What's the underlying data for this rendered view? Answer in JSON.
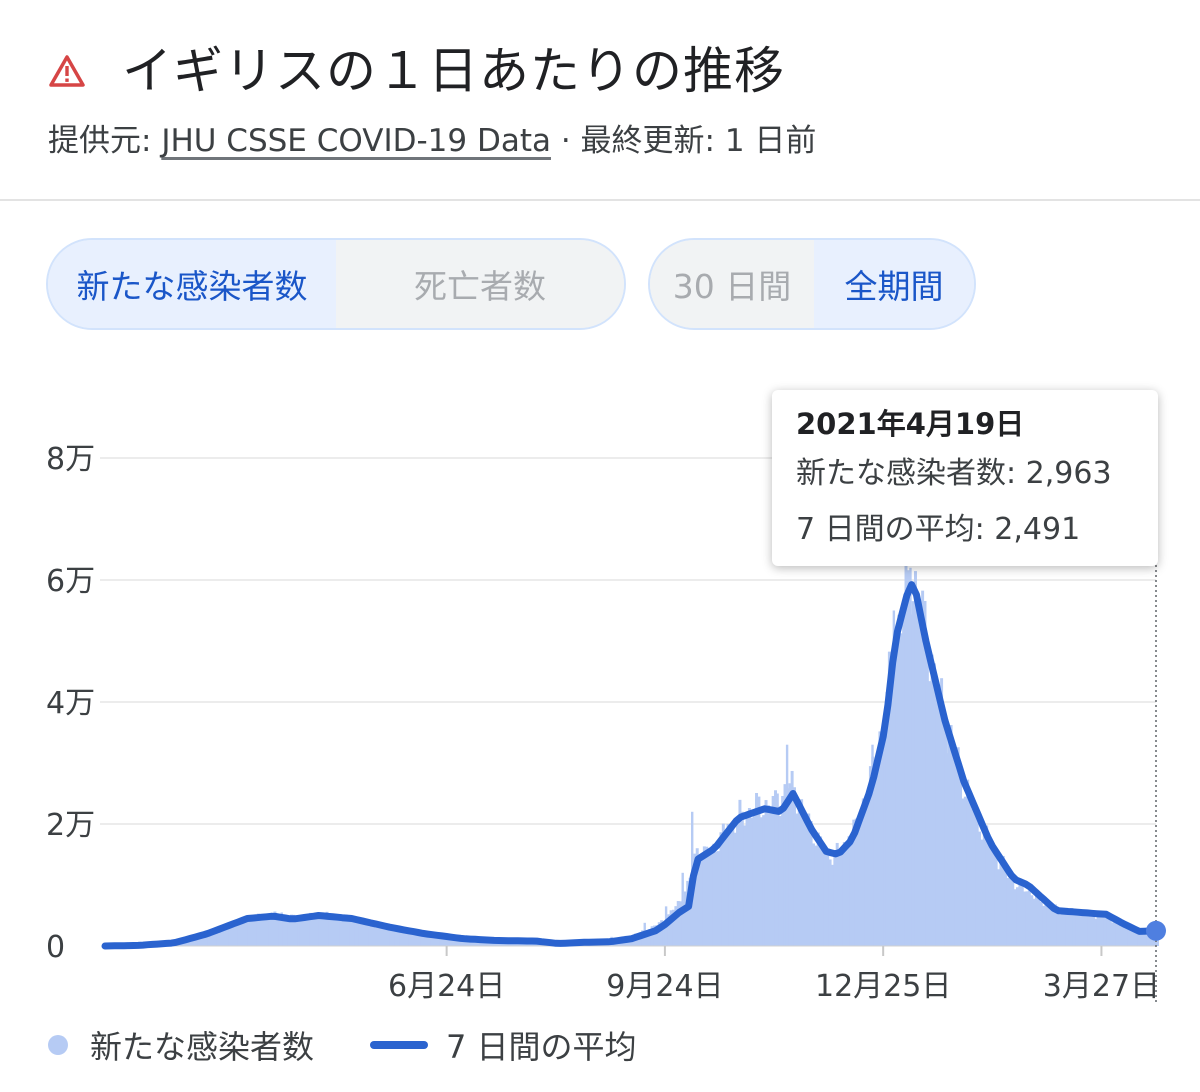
{
  "header": {
    "title": "イギリスの１日あたりの推移",
    "source_prefix": "提供元: ",
    "source_link": "JHU CSSE COVID-19 Data",
    "updated": " · 最終更新: 1 日前",
    "icon": "warning-triangle-icon"
  },
  "toggles": {
    "metric": {
      "options": [
        "新たな感染者数",
        "死亡者数"
      ],
      "selected": "新たな感染者数"
    },
    "range": {
      "options": [
        "30 日間",
        "全期間"
      ],
      "selected": "全期間"
    }
  },
  "tooltip": {
    "date": "2021年4月19日",
    "cases_label": "新たな感染者数: 2,963",
    "avg_label": "7 日間の平均: 2,491"
  },
  "legend": {
    "bars": "新たな感染者数",
    "line": "7 日間の平均"
  },
  "colors": {
    "bar": "#b6cbf4",
    "line": "#2a63cf",
    "active_text": "#1a56c8",
    "grid": "#ececec"
  },
  "chart_data": {
    "type": "bar",
    "title": "イギリスの１日あたりの推移",
    "xlabel": "",
    "ylabel": "",
    "x_range": [
      "2020-02-01",
      "2021-04-19"
    ],
    "ylim": [
      0,
      80000
    ],
    "y_ticks": [
      0,
      20000,
      40000,
      60000,
      80000
    ],
    "y_tick_labels": [
      "0",
      "2万",
      "4万",
      "6万",
      "8万"
    ],
    "x_ticks": [
      "2020-06-24",
      "2020-09-24",
      "2020-12-25",
      "2021-03-27"
    ],
    "x_tick_labels": [
      "6月24日",
      "9月24日",
      "12月25日",
      "3月27日"
    ],
    "grid": true,
    "legend_position": "bottom-left",
    "series": [
      {
        "name": "新たな感染者数",
        "type": "bar",
        "points": [
          [
            "2020-02-01",
            0
          ],
          [
            "2020-03-01",
            200
          ],
          [
            "2020-03-15",
            1500
          ],
          [
            "2020-04-05",
            5000
          ],
          [
            "2020-04-15",
            5500
          ],
          [
            "2020-04-25",
            4800
          ],
          [
            "2020-05-05",
            5400
          ],
          [
            "2020-05-15",
            5000
          ],
          [
            "2020-06-01",
            3200
          ],
          [
            "2020-06-20",
            1800
          ],
          [
            "2020-07-10",
            800
          ],
          [
            "2020-08-01",
            700
          ],
          [
            "2020-08-15",
            1000
          ],
          [
            "2020-09-01",
            1500
          ],
          [
            "2020-09-15",
            3800
          ],
          [
            "2020-09-24",
            6500
          ],
          [
            "2020-10-01",
            12000
          ],
          [
            "2020-10-05",
            22000
          ],
          [
            "2020-10-10",
            15000
          ],
          [
            "2020-10-20",
            20000
          ],
          [
            "2020-11-01",
            24000
          ],
          [
            "2020-11-10",
            25000
          ],
          [
            "2020-11-14",
            33000
          ],
          [
            "2020-11-20",
            22000
          ],
          [
            "2020-12-01",
            14000
          ],
          [
            "2020-12-10",
            18000
          ],
          [
            "2020-12-20",
            33000
          ],
          [
            "2020-12-29",
            55000
          ],
          [
            "2021-01-05",
            62000
          ],
          [
            "2021-01-12",
            50000
          ],
          [
            "2021-01-20",
            35000
          ],
          [
            "2021-02-01",
            20000
          ],
          [
            "2021-02-15",
            10000
          ],
          [
            "2021-03-01",
            6000
          ],
          [
            "2021-03-15",
            5500
          ],
          [
            "2021-03-27",
            4500
          ],
          [
            "2021-04-10",
            2500
          ],
          [
            "2021-04-19",
            2963
          ]
        ]
      },
      {
        "name": "7 日間の平均",
        "type": "line",
        "points": [
          [
            "2020-02-01",
            0
          ],
          [
            "2020-02-15",
            100
          ],
          [
            "2020-03-01",
            500
          ],
          [
            "2020-03-15",
            2000
          ],
          [
            "2020-04-01",
            4500
          ],
          [
            "2020-04-12",
            4900
          ],
          [
            "2020-04-20",
            4400
          ],
          [
            "2020-05-01",
            5000
          ],
          [
            "2020-05-15",
            4500
          ],
          [
            "2020-06-01",
            3000
          ],
          [
            "2020-06-15",
            2000
          ],
          [
            "2020-07-01",
            1200
          ],
          [
            "2020-07-15",
            900
          ],
          [
            "2020-08-01",
            800
          ],
          [
            "2020-08-10",
            400
          ],
          [
            "2020-08-20",
            600
          ],
          [
            "2020-09-01",
            700
          ],
          [
            "2020-09-10",
            1200
          ],
          [
            "2020-09-20",
            2500
          ],
          [
            "2020-09-24",
            3500
          ],
          [
            "2020-09-30",
            5500
          ],
          [
            "2020-10-04",
            6500
          ],
          [
            "2020-10-07",
            14000
          ],
          [
            "2020-10-15",
            16000
          ],
          [
            "2020-10-25",
            21000
          ],
          [
            "2020-11-05",
            22500
          ],
          [
            "2020-11-12",
            22000
          ],
          [
            "2020-11-17",
            25000
          ],
          [
            "2020-11-25",
            19000
          ],
          [
            "2020-12-01",
            15500
          ],
          [
            "2020-12-06",
            15000
          ],
          [
            "2020-12-12",
            17500
          ],
          [
            "2020-12-20",
            26000
          ],
          [
            "2020-12-26",
            36000
          ],
          [
            "2020-12-30",
            50000
          ],
          [
            "2021-01-05",
            59000
          ],
          [
            "2021-01-07",
            59500
          ],
          [
            "2021-01-12",
            50000
          ],
          [
            "2021-01-20",
            37000
          ],
          [
            "2021-01-28",
            27000
          ],
          [
            "2021-02-08",
            17000
          ],
          [
            "2021-02-18",
            11000
          ],
          [
            "2021-02-24",
            10000
          ],
          [
            "2021-03-08",
            5800
          ],
          [
            "2021-03-15",
            5600
          ],
          [
            "2021-03-25",
            5300
          ],
          [
            "2021-03-29",
            5200
          ],
          [
            "2021-04-05",
            3700
          ],
          [
            "2021-04-12",
            2400
          ],
          [
            "2021-04-19",
            2491
          ]
        ]
      }
    ],
    "highlight": {
      "date": "2021-04-19",
      "cases": 2963,
      "average": 2491
    }
  }
}
